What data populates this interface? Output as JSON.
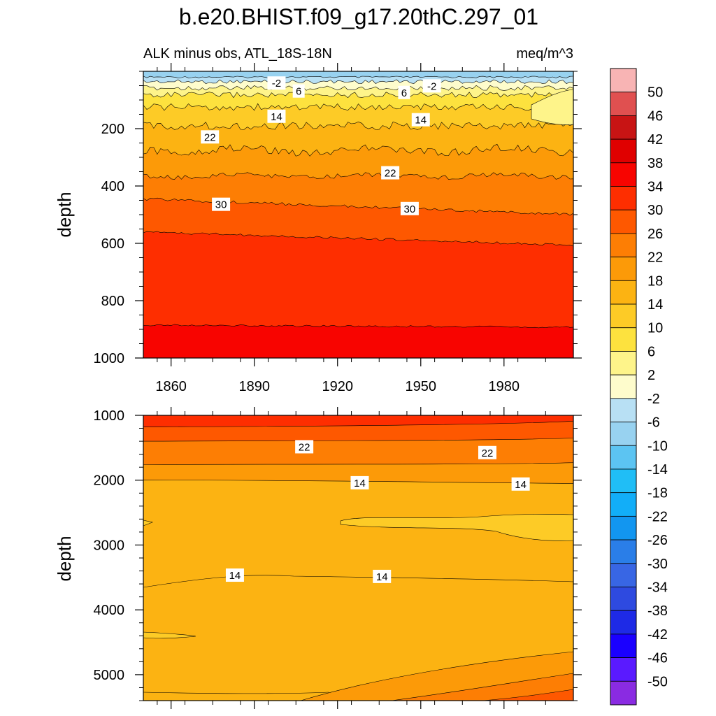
{
  "colors": {
    "levels": [
      -50,
      -46,
      -42,
      -38,
      -34,
      -30,
      -26,
      -22,
      -18,
      -14,
      -10,
      -6,
      -2,
      2,
      6,
      10,
      14,
      18,
      22,
      26,
      30,
      34,
      38,
      42,
      46,
      50
    ],
    "fills": [
      "#8a2be2",
      "#5a1aff",
      "#1a00ff",
      "#1e2ae6",
      "#2e4ae0",
      "#3866e4",
      "#2a7ee8",
      "#1296f0",
      "#12aef8",
      "#20bef6",
      "#5cc4f2",
      "#98d2f0",
      "#b8e0f4",
      "#fefccc",
      "#fef48a",
      "#fde23e",
      "#fdcb26",
      "#fcb312",
      "#fc9a08",
      "#fd7e04",
      "#fe5800",
      "#fe2e00",
      "#f80400",
      "#e00000",
      "#c81414",
      "#e05050",
      "#f8b4b4"
    ],
    "line": "#000000"
  },
  "chart_data": {
    "type": "contour",
    "title": "b.e20.BHIST.f09_g17.20thC.297_01",
    "left_subtitle": "ALK minus obs, ATL_18S-18N",
    "right_subtitle": "meq/m^3",
    "units": "meq/m^3",
    "x_range": [
      1850,
      2005
    ],
    "x_ticks": [
      1860,
      1890,
      1920,
      1950,
      1980
    ],
    "x_tick_labels": [
      "1860",
      "1890",
      "1920",
      "1950",
      "1980"
    ],
    "colorbar_labels": [
      "50",
      "46",
      "42",
      "38",
      "34",
      "30",
      "26",
      "22",
      "18",
      "14",
      "10",
      "6",
      "2",
      "-2",
      "-6",
      "-10",
      "-14",
      "-18",
      "-22",
      "-26",
      "-30",
      "-34",
      "-38",
      "-42",
      "-46",
      "-50"
    ],
    "panels": [
      {
        "name": "upper",
        "ylabel": "depth",
        "ylim": [
          0,
          1000
        ],
        "y_ticks": [
          200,
          400,
          600,
          800,
          1000
        ],
        "y_tick_labels": [
          "200",
          "400",
          "600",
          "800",
          "1000"
        ],
        "contour_labels": [
          {
            "text": "-2",
            "year": 1898,
            "depth": 42
          },
          {
            "text": "6",
            "year": 1906,
            "depth": 70
          },
          {
            "text": "6",
            "year": 1944,
            "depth": 75
          },
          {
            "text": "-2",
            "year": 1954,
            "depth": 52
          },
          {
            "text": "14",
            "year": 1898,
            "depth": 158
          },
          {
            "text": "14",
            "year": 1950,
            "depth": 170
          },
          {
            "text": "22",
            "year": 1874,
            "depth": 230
          },
          {
            "text": "22",
            "year": 1939,
            "depth": 355
          },
          {
            "text": "30",
            "year": 1878,
            "depth": 465
          },
          {
            "text": "30",
            "year": 1946,
            "depth": 480
          }
        ],
        "bands": [
          {
            "level": -6,
            "depth_mean": 20,
            "amp": 3
          },
          {
            "level": -2,
            "depth_mean": 36,
            "amp": 7
          },
          {
            "level": 2,
            "depth_mean": 58,
            "amp": 9
          },
          {
            "level": 6,
            "depth_mean": 82,
            "amp": 10
          },
          {
            "level": 10,
            "depth_mean": 125,
            "amp": 12
          },
          {
            "level": 14,
            "depth_mean": 190,
            "amp": 14
          },
          {
            "level": 18,
            "depth_mean": 275,
            "amp": 14
          },
          {
            "level": 22,
            "depth_mean": 365,
            "amp": 8
          },
          {
            "level": 26,
            "depth_mean": 445,
            "amp": 5
          },
          {
            "level": 30,
            "depth_mean": 560,
            "amp": 4
          },
          {
            "level": 34,
            "depth_mean": 885,
            "amp": 3
          }
        ]
      },
      {
        "name": "lower",
        "ylabel": "depth",
        "ylim": [
          1000,
          5400
        ],
        "y_ticks": [
          1000,
          2000,
          3000,
          4000,
          5000
        ],
        "y_tick_labels": [
          "1000",
          "2000",
          "3000",
          "4000",
          "5000"
        ],
        "contour_labels": [
          {
            "text": "22",
            "year": 1908,
            "depth": 1490
          },
          {
            "text": "22",
            "year": 1974,
            "depth": 1580
          },
          {
            "text": "14",
            "year": 1928,
            "depth": 2045
          },
          {
            "text": "14",
            "year": 1986,
            "depth": 2065
          },
          {
            "text": "14",
            "year": 1883,
            "depth": 3470
          },
          {
            "text": "14",
            "year": 1936,
            "depth": 3490
          }
        ]
      }
    ]
  }
}
